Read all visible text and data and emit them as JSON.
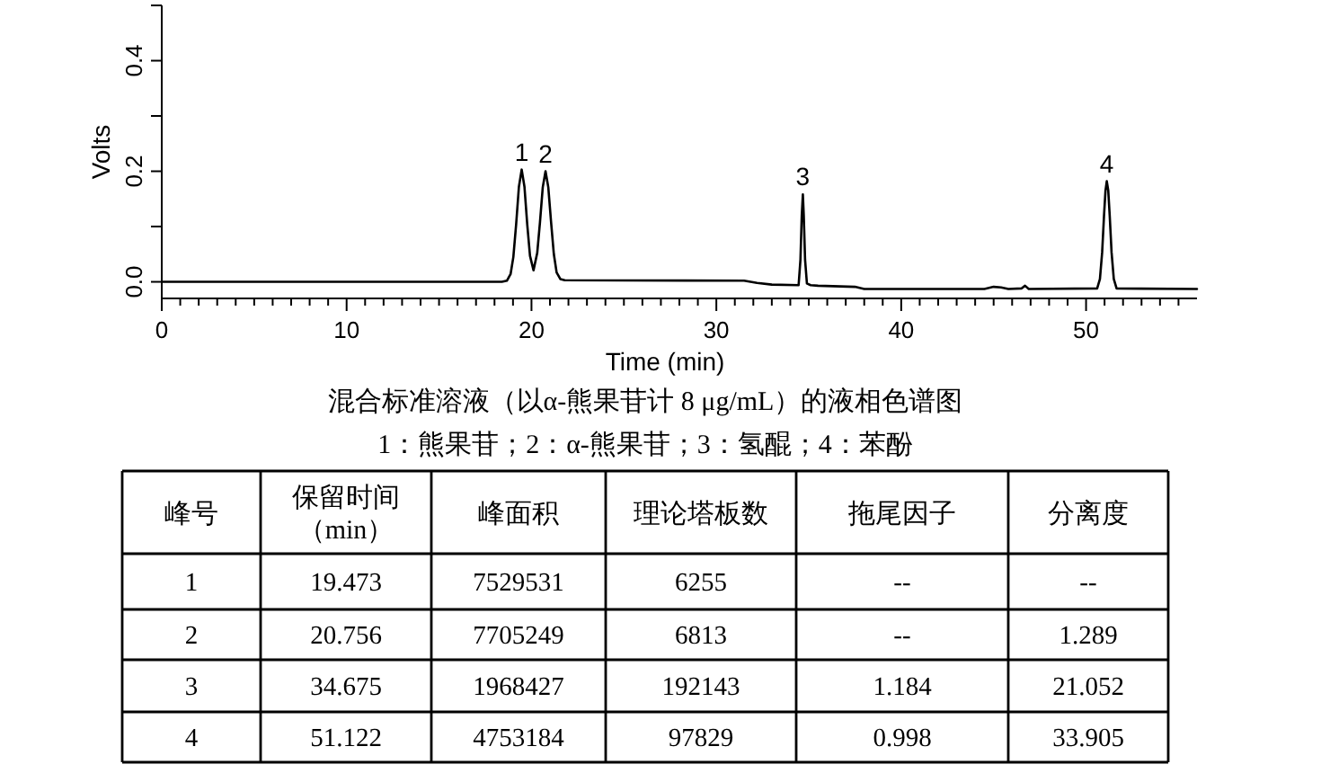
{
  "chart_data": [
    {
      "type": "line",
      "title": "混合标准溶液（以α-熊果苷计 8 μg/mL）的液相色谱图",
      "subtitle": "1：熊果苷；2：α-熊果苷；3：氢醌；4：苯酚",
      "xlabel": "Time (min)",
      "ylabel": "Volts",
      "color": "#000000",
      "x": [
        0,
        18.4,
        18.67,
        18.87,
        19.02,
        19.17,
        19.32,
        19.47,
        19.62,
        19.77,
        19.92,
        20.11,
        20.31,
        20.46,
        20.61,
        20.76,
        20.91,
        21.06,
        21.21,
        21.36,
        21.56,
        21.8,
        31.5,
        32.2,
        33.0,
        34.45,
        34.55,
        34.62,
        34.68,
        34.73,
        34.8,
        34.9,
        35.1,
        35.5,
        37.5,
        38.0,
        44.5,
        45.0,
        45.4,
        45.8,
        46.5,
        46.7,
        46.9,
        50.6,
        50.75,
        50.87,
        50.97,
        51.05,
        51.12,
        51.2,
        51.28,
        51.38,
        51.5,
        51.65,
        56
      ],
      "values": [
        0,
        0,
        0.002,
        0.014,
        0.045,
        0.104,
        0.172,
        0.203,
        0.172,
        0.104,
        0.047,
        0.021,
        0.052,
        0.108,
        0.171,
        0.2,
        0.171,
        0.108,
        0.05,
        0.017,
        0.005,
        0.003,
        0.002,
        -0.002,
        -0.005,
        -0.006,
        0.04,
        0.119,
        0.158,
        0.119,
        0.04,
        -0.003,
        -0.006,
        -0.007,
        -0.009,
        -0.013,
        -0.013,
        -0.009,
        -0.01,
        -0.013,
        -0.012,
        -0.007,
        -0.013,
        -0.012,
        0.005,
        0.053,
        0.119,
        0.165,
        0.182,
        0.165,
        0.119,
        0.053,
        0.005,
        -0.012,
        -0.013
      ],
      "xlim": [
        0,
        56
      ],
      "ylim": [
        -0.03,
        0.5
      ],
      "xticks": [
        0,
        {
          "value": 1,
          "label": null
        },
        {
          "value": 2,
          "label": null
        },
        {
          "value": 3,
          "label": null
        },
        {
          "value": 4,
          "label": null
        },
        {
          "value": 5,
          "label": null
        },
        {
          "value": 6,
          "label": null
        },
        {
          "value": 7,
          "label": null
        },
        {
          "value": 8,
          "label": null
        },
        {
          "value": 9,
          "label": null
        },
        10,
        {
          "value": 11,
          "label": null
        },
        {
          "value": 12,
          "label": null
        },
        {
          "value": 13,
          "label": null
        },
        {
          "value": 14,
          "label": null
        },
        {
          "value": 15,
          "label": null
        },
        {
          "value": 16,
          "label": null
        },
        {
          "value": 17,
          "label": null
        },
        {
          "value": 18,
          "label": null
        },
        {
          "value": 19,
          "label": null
        },
        20,
        {
          "value": 21,
          "label": null
        },
        {
          "value": 22,
          "label": null
        },
        {
          "value": 23,
          "label": null
        },
        {
          "value": 24,
          "label": null
        },
        {
          "value": 25,
          "label": null
        },
        {
          "value": 26,
          "label": null
        },
        {
          "value": 27,
          "label": null
        },
        {
          "value": 28,
          "label": null
        },
        {
          "value": 29,
          "label": null
        },
        30,
        {
          "value": 31,
          "label": null
        },
        {
          "value": 32,
          "label": null
        },
        {
          "value": 33,
          "label": null
        },
        {
          "value": 34,
          "label": null
        },
        {
          "value": 35,
          "label": null
        },
        {
          "value": 36,
          "label": null
        },
        {
          "value": 37,
          "label": null
        },
        {
          "value": 38,
          "label": null
        },
        {
          "value": 39,
          "label": null
        },
        40,
        {
          "value": 41,
          "label": null
        },
        {
          "value": 42,
          "label": null
        },
        {
          "value": 43,
          "label": null
        },
        {
          "value": 44,
          "label": null
        },
        {
          "value": 45,
          "label": null
        },
        {
          "value": 46,
          "label": null
        },
        {
          "value": 47,
          "label": null
        },
        {
          "value": 48,
          "label": null
        },
        {
          "value": 49,
          "label": null
        },
        50,
        {
          "value": 51,
          "label": null
        },
        {
          "value": 52,
          "label": null
        },
        {
          "value": 53,
          "label": null
        },
        {
          "value": 54,
          "label": null
        },
        {
          "value": 55,
          "label": null
        }
      ],
      "yticks": [
        {
          "value": 0,
          "label": "0.0"
        },
        {
          "value": 0.1,
          "label": null
        },
        0.2,
        {
          "value": 0.3,
          "label": null
        },
        0.4,
        {
          "value": 0.5,
          "label": null
        }
      ],
      "annotations": [
        {
          "text": "1",
          "x": 19.47,
          "y": 0.203
        },
        {
          "text": "2",
          "x": 20.76,
          "y": 0.2
        },
        {
          "text": "3",
          "x": 34.68,
          "y": 0.158
        },
        {
          "text": "4",
          "x": 51.12,
          "y": 0.182
        }
      ]
    },
    {
      "type": "heatmap",
      "ylabel": "峰号",
      "categories": [
        "保留时间（min）",
        "峰面积",
        "理论塔板数",
        "拖尾因子",
        "分离度"
      ],
      "y_categories": [
        "1",
        "2",
        "3",
        "4"
      ],
      "cells": [
        [
          null,
          null,
          null,
          null,
          null
        ],
        [
          null,
          null,
          null,
          null,
          null
        ],
        [
          null,
          null,
          null,
          null,
          null
        ],
        [
          null,
          null,
          null,
          null,
          null
        ]
      ],
      "cell_labels": [
        [
          "19.473",
          "7529531",
          "6255",
          "--",
          "--"
        ],
        [
          "20.756",
          "7705249",
          "6813",
          "--",
          "1.289"
        ],
        [
          "34.675",
          "1968427",
          "192143",
          "1.184",
          "21.052"
        ],
        [
          "51.122",
          "4753184",
          "97829",
          "0.998",
          "33.905"
        ]
      ]
    }
  ]
}
